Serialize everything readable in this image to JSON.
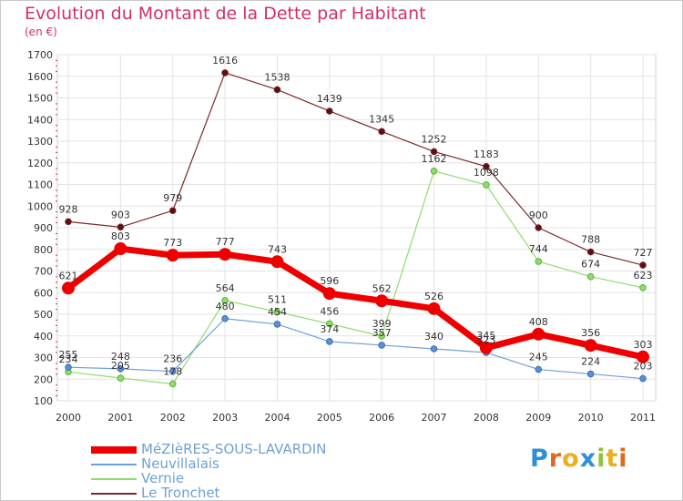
{
  "chart_data": {
    "type": "line",
    "title": "Evolution du Montant de la Dette par Habitant",
    "subtitle": "(en €)",
    "xlabel": "",
    "ylabel": "",
    "categories": [
      "2000",
      "2001",
      "2002",
      "2003",
      "2004",
      "2005",
      "2006",
      "2007",
      "2008",
      "2009",
      "2010",
      "2011"
    ],
    "ylim": [
      100,
      1700
    ],
    "yticks": [
      "100",
      "200",
      "300",
      "400",
      "500",
      "600",
      "700",
      "800",
      "900",
      "1000",
      "1100",
      "1200",
      "1300",
      "1400",
      "1500",
      "1600",
      "1700"
    ],
    "grid": true,
    "legend_position": "bottom-left",
    "series": [
      {
        "name": "Le Tronchet",
        "color": "#7a2a2a",
        "values": [
          928,
          903,
          979,
          1616,
          1538,
          1439,
          1345,
          1252,
          1183,
          900,
          788,
          727
        ]
      },
      {
        "name": "Vernie",
        "color": "#8fdc6b",
        "values": [
          234,
          205,
          178,
          564,
          511,
          456,
          399,
          1162,
          1098,
          744,
          674,
          623
        ]
      },
      {
        "name": "Neuvillalais",
        "color": "#6fa0d6",
        "values": [
          255,
          248,
          236,
          480,
          454,
          374,
          357,
          340,
          323,
          245,
          224,
          203
        ]
      },
      {
        "name": "MéZIèRES-SOUS-LAVARDIN",
        "color": "#ee0000",
        "values": [
          621,
          803,
          773,
          777,
          743,
          596,
          562,
          526,
          345,
          408,
          356,
          303
        ]
      }
    ],
    "data_labels": {
      "Le Tronchet": [
        "928",
        "903",
        "979",
        "1616",
        "1538",
        "1439",
        "1345",
        "1252",
        "1183",
        "900",
        "788",
        "727"
      ],
      "Vernie": [
        "234",
        "205",
        "178",
        "564",
        "511",
        "456",
        "399",
        "1162",
        "1098",
        "744",
        "674",
        "623"
      ],
      "Neuvillalais": [
        "255",
        "248",
        "236",
        "480",
        "454",
        "374",
        "357",
        "340",
        "323",
        "245",
        "224",
        "203"
      ],
      "MéZIèRES-SOUS-LAVARDIN": [
        "621",
        "803",
        "773",
        "777",
        "743",
        "596",
        "562",
        "526",
        "345",
        "408",
        "356",
        "303"
      ]
    }
  },
  "legend": {
    "items": [
      {
        "label": "MéZIèRES-SOUS-LAVARDIN",
        "color": "#ee0000"
      },
      {
        "label": "Neuvillalais",
        "color": "#6fa0d6"
      },
      {
        "label": "Vernie",
        "color": "#8fdc6b"
      },
      {
        "label": "Le Tronchet",
        "color": "#7a2a2a"
      }
    ]
  },
  "logo": {
    "text": "Proxiti"
  }
}
